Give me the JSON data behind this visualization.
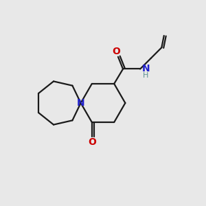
{
  "bg_color": "#e8e8e8",
  "bond_color": "#1a1a1a",
  "N_color": "#2020cc",
  "O_color": "#cc0000",
  "NH_color": "#5a9090",
  "line_width": 1.6,
  "fig_size": [
    3.0,
    3.0
  ],
  "dpi": 100,
  "xlim": [
    0,
    10
  ],
  "ylim": [
    0,
    10
  ]
}
